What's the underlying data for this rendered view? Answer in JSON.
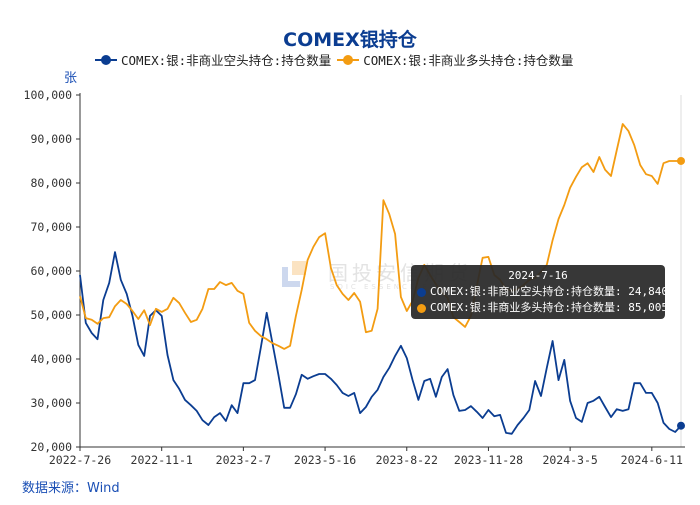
{
  "title": "COMEX银持仓",
  "unit": "张",
  "source": "数据来源：Wind",
  "watermark": {
    "cn": "国投安信期货",
    "en": "SDIC ESSENCE FUTURES"
  },
  "colors": {
    "short": "#0b3d91",
    "long": "#f39c12",
    "title": "#0b3d91",
    "axis": "#333333"
  },
  "legend": [
    {
      "label": "COMEX:银:非商业空头持仓:持仓数量",
      "color": "#0b3d91"
    },
    {
      "label": "COMEX:银:非商业多头持仓:持仓数量",
      "color": "#f39c12"
    }
  ],
  "tooltip": {
    "date": "2024-7-16",
    "rows": [
      {
        "label": "COMEX:银:非商业空头持仓:持仓数量:",
        "value": "24,840",
        "color": "#0b3d91"
      },
      {
        "label": "COMEX:银:非商业多头持仓:持仓数量:",
        "value": "85,005",
        "color": "#f39c12"
      }
    ]
  },
  "chart_data": {
    "type": "line",
    "title": "COMEX银持仓",
    "xlabel": "",
    "ylabel": "张",
    "ylim": [
      20000,
      100000
    ],
    "yticks": [
      "20,000",
      "30,000",
      "40,000",
      "50,000",
      "60,000",
      "70,000",
      "80,000",
      "90,000",
      "100,000"
    ],
    "xticks": [
      "2022-7-26",
      "2022-11-1",
      "2023-2-7",
      "2023-5-16",
      "2023-8-22",
      "2023-11-28",
      "2024-3-5",
      "2024-6-11"
    ],
    "x_start": "2022-7-26",
    "x_end": "2024-7-16",
    "frequency": "weekly",
    "legend_position": "top",
    "grid": false,
    "series": [
      {
        "name": "COMEX:银:非商业空头持仓:持仓数量",
        "color": "#0b3d91",
        "values": [
          59100,
          48200,
          45900,
          44500,
          53400,
          57300,
          64300,
          58000,
          54800,
          49800,
          43200,
          40700,
          49800,
          51100,
          49800,
          40900,
          35200,
          33200,
          30700,
          29500,
          28200,
          26100,
          25000,
          26800,
          27700,
          25900,
          29500,
          27700,
          34500,
          34500,
          35200,
          42700,
          50500,
          43400,
          36400,
          28900,
          28900,
          32000,
          36400,
          35500,
          36100,
          36600,
          36600,
          35500,
          34100,
          32300,
          31600,
          32300,
          27700,
          29100,
          31400,
          33000,
          35900,
          38000,
          40700,
          43000,
          40200,
          35200,
          30700,
          35000,
          35500,
          31400,
          35900,
          37700,
          31800,
          28200,
          28400,
          29300,
          28000,
          26600,
          28400,
          27000,
          27300,
          23200,
          23000,
          25000,
          26600,
          28400,
          35000,
          31600,
          38000,
          44100,
          35200,
          39800,
          30500,
          26600,
          25700,
          30000,
          30500,
          31400,
          29100,
          26800,
          28600,
          28200,
          28600,
          34500,
          34500,
          32300,
          32300,
          30000,
          25500,
          24100,
          23400,
          24840
        ]
      },
      {
        "name": "COMEX:银:非商业多头持仓:持仓数量",
        "color": "#f39c12",
        "values": [
          54300,
          49300,
          48900,
          48000,
          49300,
          49500,
          52000,
          53400,
          52500,
          50900,
          49100,
          51100,
          47700,
          51400,
          50700,
          51400,
          53900,
          52700,
          50500,
          48400,
          48900,
          51400,
          55900,
          55900,
          57500,
          56800,
          57300,
          55500,
          54800,
          48200,
          46400,
          45200,
          44500,
          43600,
          43000,
          42300,
          43000,
          49800,
          55700,
          62500,
          65500,
          67700,
          68600,
          60700,
          56800,
          54800,
          53400,
          55000,
          53000,
          46100,
          46400,
          51400,
          76100,
          72900,
          68400,
          54100,
          50900,
          53200,
          58400,
          61400,
          59100,
          57000,
          55200,
          53900,
          49500,
          48400,
          47300,
          49800,
          56600,
          63000,
          63200,
          59100,
          58000,
          55900,
          55500,
          55900,
          56800,
          58000,
          58400,
          59800,
          61400,
          67000,
          71800,
          75000,
          78900,
          81400,
          83600,
          84500,
          82500,
          85900,
          83000,
          81600,
          87500,
          93400,
          91800,
          88600,
          84100,
          82000,
          81600,
          79800,
          84500,
          85000,
          85000,
          85005
        ]
      }
    ]
  }
}
